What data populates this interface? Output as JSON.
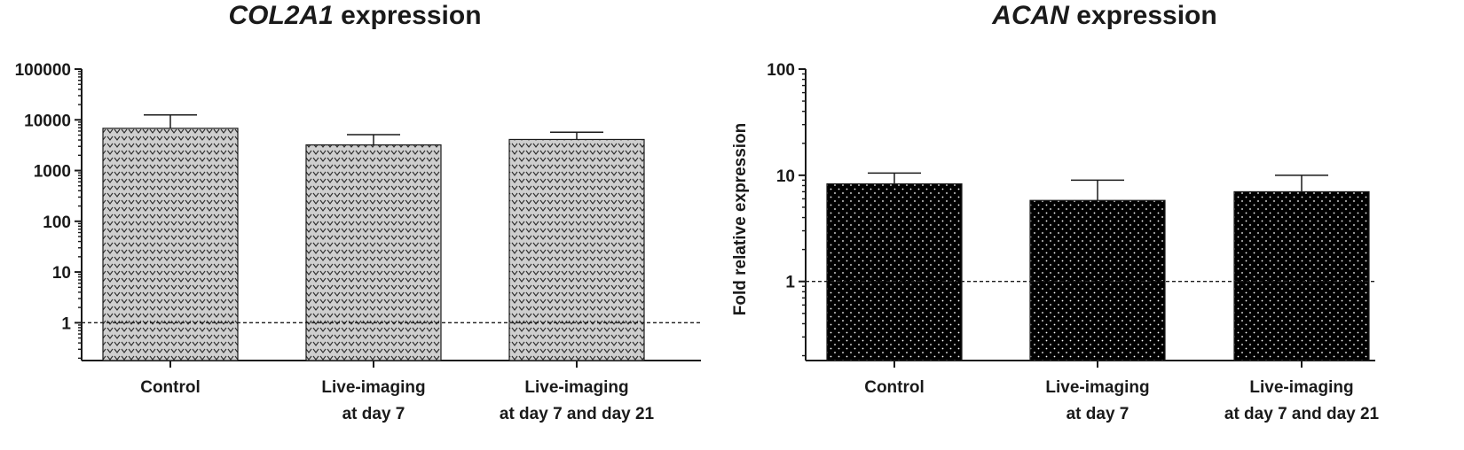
{
  "chart_data": [
    {
      "type": "bar",
      "title_gene": "COL2A1",
      "title_rest": " expression",
      "ylabel": "",
      "yscale": "log",
      "ylim": [
        0.18,
        100000
      ],
      "yticks": [
        1,
        10,
        100,
        1000,
        10000,
        100000
      ],
      "ytick_labels": [
        "1",
        "10",
        "100",
        "1000",
        "10000",
        "100000"
      ],
      "reference_line": 1,
      "categories": [
        [
          "Control"
        ],
        [
          "Live-imaging",
          "at day 7"
        ],
        [
          "Live-imaging",
          "at day 7 and day 21"
        ]
      ],
      "values": [
        6800,
        3200,
        4100
      ],
      "error_upper": [
        12500,
        5100,
        5700
      ],
      "bar_color": "#cfcfcf",
      "pattern_color": "#2a2a2a"
    },
    {
      "type": "bar",
      "title_gene": "ACAN",
      "title_rest": " expression",
      "ylabel": "Fold relative expression",
      "yscale": "log",
      "ylim": [
        0.18,
        100
      ],
      "yticks": [
        1,
        10,
        100
      ],
      "ytick_labels": [
        "1",
        "10",
        "100"
      ],
      "reference_line": 1,
      "categories": [
        [
          "Control"
        ],
        [
          "Live-imaging",
          "at day 7"
        ],
        [
          "Live-imaging",
          "at day 7 and day 21"
        ]
      ],
      "values": [
        8.3,
        5.8,
        7.0
      ],
      "error_upper": [
        10.5,
        9.0,
        10.0
      ],
      "bar_color": "#000000",
      "pattern_color": "#ffffff"
    }
  ]
}
